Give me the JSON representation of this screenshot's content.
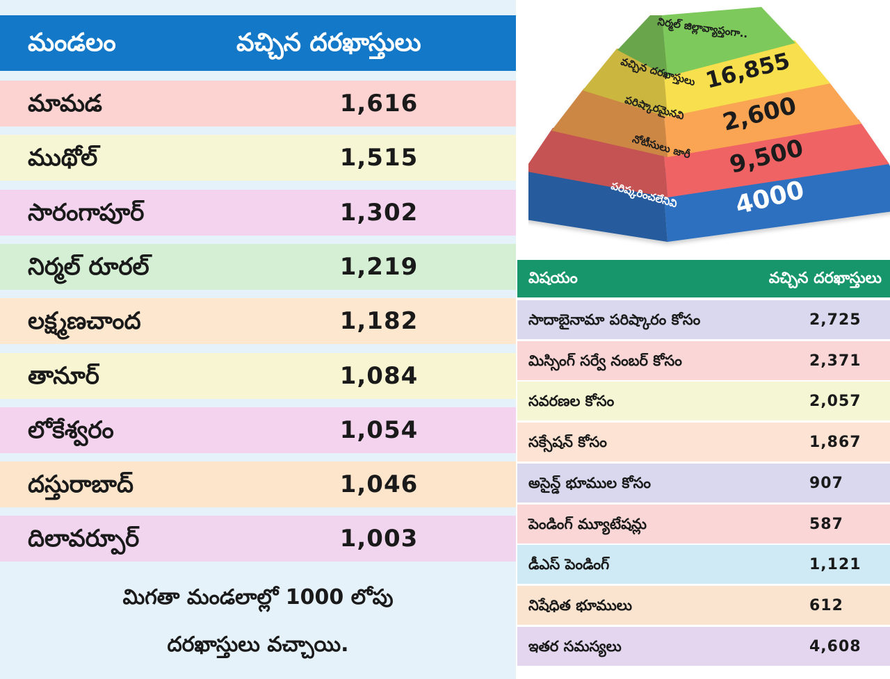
{
  "left_table": {
    "header": {
      "col1": "మండలం",
      "col2": "వచ్చిన దరఖాస్తులు"
    },
    "rows": [
      {
        "name": "మామడ",
        "value": "1,616",
        "color": "#fcd3d0"
      },
      {
        "name": "ముథోల్",
        "value": "1,515",
        "color": "#f6f6d4"
      },
      {
        "name": "సారంగాపూర్",
        "value": "1,302",
        "color": "#f3d3ee"
      },
      {
        "name": "నిర్మల్ రూరల్",
        "value": "1,219",
        "color": "#d4efd3"
      },
      {
        "name": "లక్ష్మణచాంద",
        "value": "1,182",
        "color": "#fde7cf"
      },
      {
        "name": "తానూర్",
        "value": "1,084",
        "color": "#f8f5d2"
      },
      {
        "name": "లోకేశ్వరం",
        "value": "1,054",
        "color": "#f3d3ee"
      },
      {
        "name": "దస్తురాబాద్",
        "value": "1,046",
        "color": "#fde5cb"
      },
      {
        "name": "దిలావర్పూర్",
        "value": "1,003",
        "color": "#f1d4ee"
      }
    ],
    "footer": {
      "line1": "మిగతా మండలాల్లో 1000 లోపు",
      "line2": "దరఖాస్తులు వచ్చాయి."
    }
  },
  "pyramid": {
    "title": "నిర్మల్ జిల్లావ్యాప్తంగా..",
    "levels": [
      {
        "label": "వచ్చిన దరఖాస్తులు",
        "value": "16,855",
        "color": "#f7df4d"
      },
      {
        "label": "పరిష్కారమైనవి",
        "value": "2,600",
        "color": "#f9a553"
      },
      {
        "label": "నోటీసులు జారీ",
        "value": "9,500",
        "color": "#f06465"
      },
      {
        "label": "పరిష్కరించలేనివి",
        "value": "4000",
        "color": "#2d6fc0"
      }
    ],
    "top_color": "#7dc95c"
  },
  "right_table": {
    "header": {
      "col1": "విషయం",
      "col2": "వచ్చిన దరఖాస్తులు"
    },
    "rows": [
      {
        "name": "సాదాబైనామా పరిష్కారం కోసం",
        "value": "2,725",
        "color": "#d9d8ee"
      },
      {
        "name": "మిస్సింగ్ సర్వే నంబర్ కోసం",
        "value": "2,371",
        "color": "#fbd6d6"
      },
      {
        "name": "సవరణల కోసం",
        "value": "2,057",
        "color": "#f4f6d4"
      },
      {
        "name": "సక్సేషన్ కోసం",
        "value": "1,867",
        "color": "#fde3d3"
      },
      {
        "name": "అసైన్డ్ భూముల కోసం",
        "value": "907",
        "color": "#d9d8ee"
      },
      {
        "name": "పెండింగ్ మ్యూటేషన్లు",
        "value": "587",
        "color": "#fbd6d6"
      },
      {
        "name": "డీఎస్ పెండింగ్",
        "value": "1,121",
        "color": "#cfeaf4"
      },
      {
        "name": "నిషేధిత భూములు",
        "value": "612",
        "color": "#fae3cf"
      },
      {
        "name": "ఇతర సమస్యలు",
        "value": "4,608",
        "color": "#e3d6ee"
      }
    ]
  }
}
